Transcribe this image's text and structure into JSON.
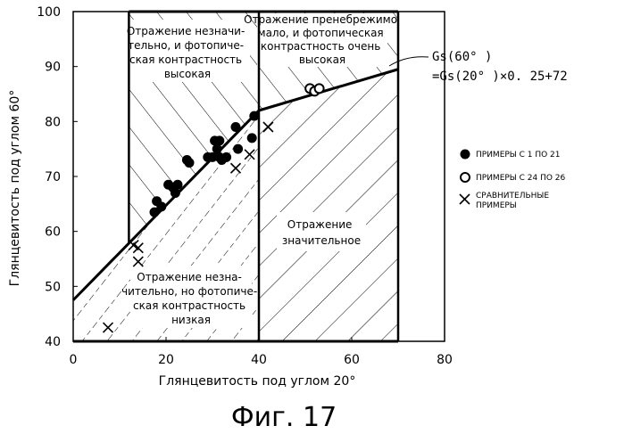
{
  "chart_data": {
    "type": "scatter",
    "xlabel": "Глянцевитость под углом 20°",
    "ylabel": "Глянцевитость под углом 60°",
    "xlim": [
      0,
      80
    ],
    "ylim": [
      40,
      100
    ],
    "x_ticks": [
      0,
      20,
      40,
      60,
      80
    ],
    "y_ticks": [
      40,
      50,
      60,
      70,
      80,
      90,
      100
    ],
    "grid": false,
    "legend_position": "right",
    "series": [
      {
        "name": "ПРИМЕРЫ С 1 ПО 21",
        "marker": "filled-circle",
        "points": [
          [
            17.5,
            63.5
          ],
          [
            18,
            65.5
          ],
          [
            19,
            64.5
          ],
          [
            20.5,
            68.5
          ],
          [
            21.5,
            68
          ],
          [
            22,
            67
          ],
          [
            22.5,
            68.5
          ],
          [
            24.5,
            73
          ],
          [
            25,
            72.5
          ],
          [
            29,
            73.5
          ],
          [
            30,
            73.5
          ],
          [
            30.5,
            76.5
          ],
          [
            31,
            75
          ],
          [
            31.5,
            73.5
          ],
          [
            32,
            73
          ],
          [
            31.5,
            76.5
          ],
          [
            33,
            73.5
          ],
          [
            35,
            79
          ],
          [
            35.5,
            75
          ],
          [
            38.5,
            77
          ],
          [
            39,
            81
          ]
        ]
      },
      {
        "name": "ПРИМЕРЫ С 24 ПО 26",
        "marker": "open-circle",
        "points": [
          [
            51,
            86
          ],
          [
            52,
            85.5
          ],
          [
            53,
            86
          ]
        ]
      },
      {
        "name": "СРАВНИТЕЛЬНЫЕ ПРИМЕРЫ",
        "marker": "x",
        "points": [
          [
            7.5,
            42.5
          ],
          [
            13,
            57.5
          ],
          [
            14,
            57
          ],
          [
            14,
            54.5
          ],
          [
            35,
            71.5
          ],
          [
            38,
            74
          ],
          [
            42,
            79
          ]
        ]
      }
    ],
    "lines": [
      {
        "x": [
          0,
          40
        ],
        "y": [
          47.5,
          82
        ]
      },
      {
        "x": [
          40,
          70
        ],
        "y": [
          82,
          89.5
        ]
      }
    ],
    "annotations": {
      "region_top_left": [
        "Отражение незначи-",
        "тельно, и фотопиче-",
        "ская контрастность",
        "высокая"
      ],
      "region_top_right": [
        "Отражение пренебрежимо",
        "мало, и фотопическая",
        "контрастность очень",
        "высокая"
      ],
      "region_bottom_left": [
        "Отражение незна-",
        "чительно, но фотопиче-",
        "ская контрастность",
        "низкая"
      ],
      "region_bottom_right": [
        "Отражение",
        "значительное"
      ],
      "equation": [
        "Gs(60° )",
        "=Gs(20° )×0. 25+72"
      ]
    },
    "figure_caption": "Фиг. 17"
  },
  "colors": {
    "ink": "#000000",
    "background": "#ffffff"
  }
}
